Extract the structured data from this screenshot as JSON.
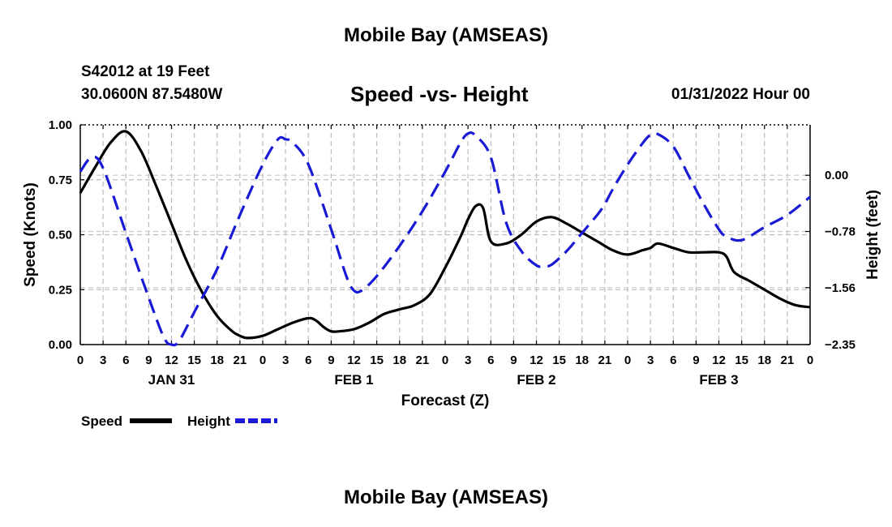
{
  "page": {
    "top_title": "Mobile Bay (AMSEAS)",
    "bottom_title": "Mobile Bay (AMSEAS)",
    "station": "S42012 at 19 Feet",
    "coords": "30.0600N  87.5480W",
    "datetime": "01/31/2022 Hour 00"
  },
  "chart_data": {
    "type": "line",
    "title": "Speed -vs- Height",
    "xlabel": "Forecast (Z)",
    "ylabel_left": "Speed (Knots)",
    "ylabel_right": "Height (feet)",
    "xlim": [
      0,
      96
    ],
    "ylim_left": [
      0,
      1
    ],
    "ylim_right": [
      -2.35,
      0.7
    ],
    "left_ticks": [
      {
        "value": 0.0,
        "label": "0.00"
      },
      {
        "value": 0.25,
        "label": "0.25"
      },
      {
        "value": 0.5,
        "label": "0.50"
      },
      {
        "value": 0.75,
        "label": "0.75"
      },
      {
        "value": 1.0,
        "label": "1.00"
      }
    ],
    "right_ticks": [
      {
        "value": 0.0,
        "label": "0.00"
      },
      {
        "value": -0.78,
        "label": "−0.78"
      },
      {
        "value": -1.56,
        "label": "−1.56"
      },
      {
        "value": -2.35,
        "label": "−2.35"
      }
    ],
    "x_ticks": [
      {
        "x": 0,
        "label": "0"
      },
      {
        "x": 3,
        "label": "3"
      },
      {
        "x": 6,
        "label": "6"
      },
      {
        "x": 9,
        "label": "9"
      },
      {
        "x": 12,
        "label": "12"
      },
      {
        "x": 15,
        "label": "15"
      },
      {
        "x": 18,
        "label": "18"
      },
      {
        "x": 21,
        "label": "21"
      },
      {
        "x": 24,
        "label": "0"
      },
      {
        "x": 27,
        "label": "3"
      },
      {
        "x": 30,
        "label": "6"
      },
      {
        "x": 33,
        "label": "9"
      },
      {
        "x": 36,
        "label": "12"
      },
      {
        "x": 39,
        "label": "15"
      },
      {
        "x": 42,
        "label": "18"
      },
      {
        "x": 45,
        "label": "21"
      },
      {
        "x": 48,
        "label": "0"
      },
      {
        "x": 51,
        "label": "3"
      },
      {
        "x": 54,
        "label": "6"
      },
      {
        "x": 57,
        "label": "9"
      },
      {
        "x": 60,
        "label": "12"
      },
      {
        "x": 63,
        "label": "15"
      },
      {
        "x": 66,
        "label": "18"
      },
      {
        "x": 69,
        "label": "21"
      },
      {
        "x": 72,
        "label": "0"
      },
      {
        "x": 75,
        "label": "3"
      },
      {
        "x": 78,
        "label": "6"
      },
      {
        "x": 81,
        "label": "9"
      },
      {
        "x": 84,
        "label": "12"
      },
      {
        "x": 87,
        "label": "15"
      },
      {
        "x": 90,
        "label": "18"
      },
      {
        "x": 93,
        "label": "21"
      },
      {
        "x": 96,
        "label": "0"
      }
    ],
    "day_labels": [
      {
        "x": 12,
        "label": "JAN 31"
      },
      {
        "x": 36,
        "label": "FEB 1"
      },
      {
        "x": 60,
        "label": "FEB 2"
      },
      {
        "x": 84,
        "label": "FEB 3"
      }
    ],
    "grid": true,
    "series": [
      {
        "name": "Speed",
        "axis": "left",
        "color": "#000000",
        "dash": "solid",
        "x": [
          0,
          2,
          4,
          6,
          8,
          10,
          12,
          14,
          16,
          18,
          20,
          21,
          22,
          24,
          26,
          28,
          30,
          31,
          32,
          33,
          34,
          36,
          38,
          40,
          42,
          44,
          46,
          48,
          50,
          51,
          52,
          53,
          54,
          56,
          58,
          60,
          62,
          64,
          66,
          68,
          70,
          72,
          74,
          75,
          76,
          78,
          80,
          82,
          84,
          85,
          86,
          88,
          90,
          92,
          94,
          96
        ],
        "y": [
          0.69,
          0.81,
          0.92,
          0.97,
          0.88,
          0.72,
          0.55,
          0.38,
          0.24,
          0.13,
          0.06,
          0.04,
          0.03,
          0.04,
          0.07,
          0.1,
          0.12,
          0.11,
          0.08,
          0.06,
          0.06,
          0.07,
          0.1,
          0.14,
          0.16,
          0.18,
          0.23,
          0.35,
          0.49,
          0.57,
          0.63,
          0.62,
          0.47,
          0.46,
          0.5,
          0.56,
          0.58,
          0.55,
          0.51,
          0.47,
          0.43,
          0.41,
          0.43,
          0.44,
          0.46,
          0.44,
          0.42,
          0.42,
          0.42,
          0.4,
          0.33,
          0.29,
          0.25,
          0.21,
          0.18,
          0.17
        ]
      },
      {
        "name": "Height",
        "axis": "right",
        "color": "#1a1ad6",
        "dash": "dashed",
        "x": [
          0,
          1.5,
          3,
          6,
          9,
          11,
          12,
          13,
          15,
          18,
          21,
          24,
          26,
          27,
          28,
          30,
          33,
          35,
          36,
          37,
          39,
          42,
          45,
          48,
          50,
          51,
          52,
          54,
          56,
          58,
          60,
          61,
          62,
          64,
          66,
          68,
          69,
          70,
          72,
          74,
          75,
          76,
          78,
          80,
          82,
          84,
          85,
          87,
          90,
          93,
          96
        ],
        "y": [
          0.05,
          0.25,
          0.1,
          -0.8,
          -1.7,
          -2.25,
          -2.35,
          -2.3,
          -1.9,
          -1.3,
          -0.55,
          0.15,
          0.5,
          0.5,
          0.45,
          0.15,
          -0.75,
          -1.4,
          -1.6,
          -1.6,
          -1.4,
          -0.98,
          -0.5,
          0.05,
          0.45,
          0.58,
          0.55,
          0.25,
          -0.65,
          -1.05,
          -1.25,
          -1.26,
          -1.24,
          -1.05,
          -0.8,
          -0.55,
          -0.4,
          -0.2,
          0.15,
          0.45,
          0.56,
          0.57,
          0.4,
          0.0,
          -0.4,
          -0.75,
          -0.85,
          -0.9,
          -0.72,
          -0.55,
          -0.3
        ]
      }
    ],
    "legend": [
      {
        "name": "Speed",
        "color": "#000000",
        "dash": "solid"
      },
      {
        "name": "Height",
        "color": "#1a1ad6",
        "dash": "dashed"
      }
    ]
  }
}
